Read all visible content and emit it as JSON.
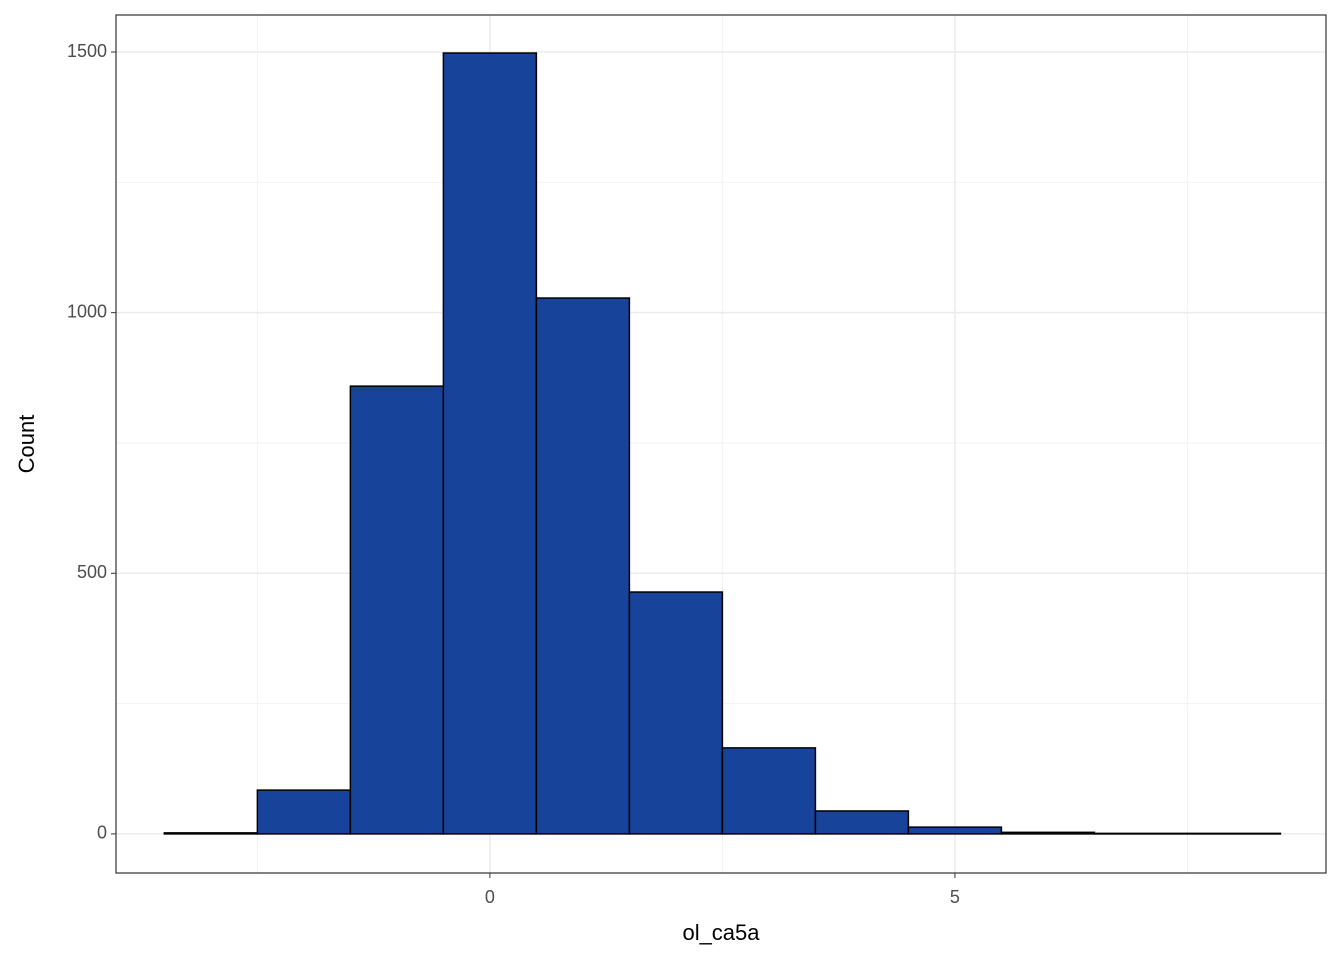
{
  "chart_data": {
    "type": "histogram",
    "x_label": "ol_ca5a",
    "y_label": "Count",
    "bins": [
      -3.5,
      -2.5,
      -1.5,
      -0.5,
      0.5,
      1.5,
      2.5,
      3.5,
      4.5,
      5.5,
      6.5,
      7.5,
      8.5
    ],
    "values": [
      2,
      84,
      859,
      1498,
      1028,
      464,
      165,
      44,
      13,
      3,
      1,
      1
    ],
    "color": "#18439a",
    "edge_color": "#000000",
    "xlim": [
      -4.02,
      8.99
    ],
    "ylim": [
      -75,
      1571
    ],
    "xticks": [
      0,
      5
    ],
    "yticks": [
      0,
      500,
      1000,
      1500
    ],
    "grid": true
  }
}
